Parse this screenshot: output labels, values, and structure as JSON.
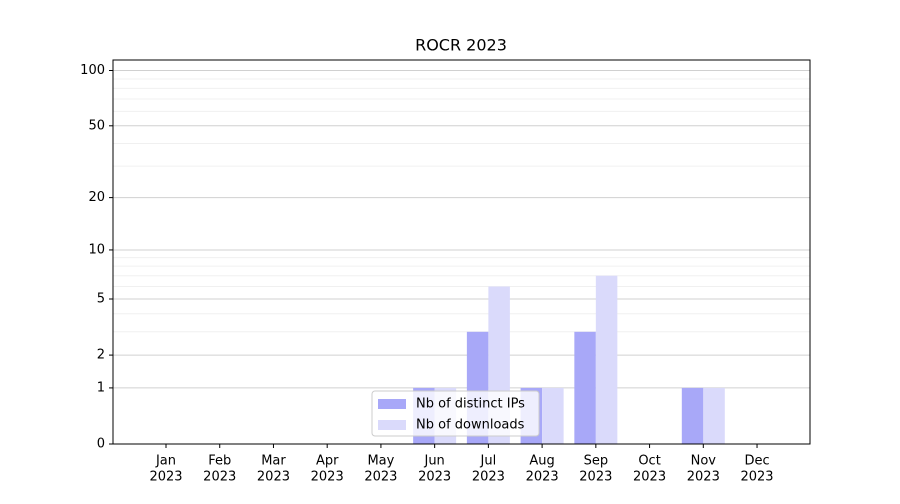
{
  "chart_data": {
    "type": "bar",
    "title": "ROCR 2023",
    "categories": [
      [
        "Jan",
        "2023"
      ],
      [
        "Feb",
        "2023"
      ],
      [
        "Mar",
        "2023"
      ],
      [
        "Apr",
        "2023"
      ],
      [
        "May",
        "2023"
      ],
      [
        "Jun",
        "2023"
      ],
      [
        "Jul",
        "2023"
      ],
      [
        "Aug",
        "2023"
      ],
      [
        "Sep",
        "2023"
      ],
      [
        "Oct",
        "2023"
      ],
      [
        "Nov",
        "2023"
      ],
      [
        "Dec",
        "2023"
      ]
    ],
    "series": [
      {
        "name": "Nb of distinct IPs",
        "color": "#a8a8f8",
        "values": [
          0,
          0,
          0,
          0,
          0,
          1,
          3,
          1,
          3,
          0,
          1,
          0
        ]
      },
      {
        "name": "Nb of downloads",
        "color": "#dadafb",
        "values": [
          0,
          0,
          0,
          0,
          0,
          1,
          6,
          1,
          7,
          0,
          1,
          0
        ]
      }
    ],
    "yscale": "log1p",
    "ylim": [
      0,
      114
    ],
    "yticks": [
      0,
      1,
      2,
      5,
      10,
      20,
      50,
      100
    ],
    "yminor": [
      3,
      4,
      6,
      7,
      8,
      9,
      30,
      40,
      60,
      70,
      80,
      90
    ],
    "grid": true,
    "legend": "lower center"
  }
}
